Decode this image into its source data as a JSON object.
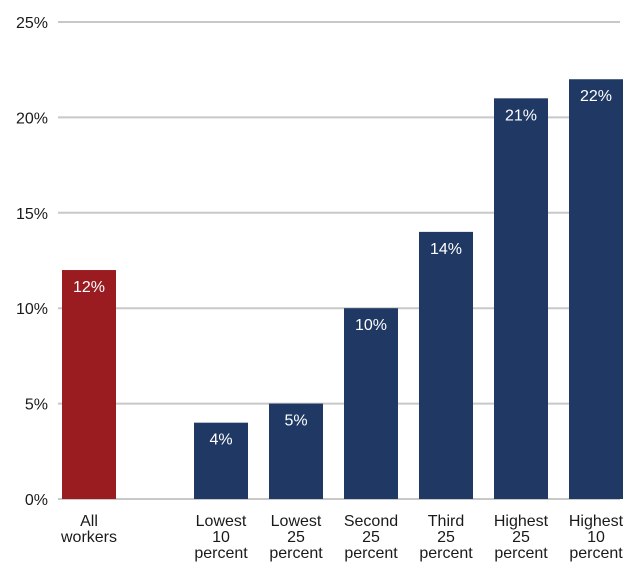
{
  "chart_data": {
    "type": "bar",
    "categories": [
      [
        "All",
        "workers"
      ],
      [
        "Lowest",
        "10",
        "percent"
      ],
      [
        "Lowest",
        "25",
        "percent"
      ],
      [
        "Second",
        "25",
        "percent"
      ],
      [
        "Third",
        "25",
        "percent"
      ],
      [
        "Highest",
        "25",
        "percent"
      ],
      [
        "Highest",
        "10",
        "percent"
      ]
    ],
    "values": [
      12,
      4,
      5,
      10,
      14,
      21,
      22
    ],
    "data_labels": [
      "12%",
      "4%",
      "5%",
      "10%",
      "14%",
      "21%",
      "22%"
    ],
    "bar_colors": [
      "#9b1c20",
      "#1f3864",
      "#1f3864",
      "#1f3864",
      "#1f3864",
      "#1f3864",
      "#1f3864"
    ],
    "y_ticks": [
      0,
      5,
      10,
      15,
      20,
      25
    ],
    "y_tick_labels": [
      "0%",
      "5%",
      "10%",
      "15%",
      "20%",
      "25%"
    ],
    "ylim": [
      0,
      25
    ],
    "grid": true,
    "title": "",
    "xlabel": "",
    "ylabel": ""
  }
}
